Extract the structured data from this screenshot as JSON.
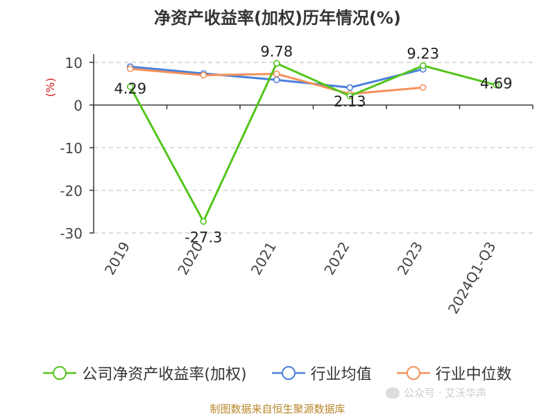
{
  "title": "净资产收益率(加权)历年情况(%)",
  "source": "制图数据来自恒生聚源数据库",
  "watermark": "公众号 · 艾沃华声",
  "chart_data": {
    "type": "line",
    "title": "净资产收益率(加权)历年情况(%)",
    "ylabel": "(%)",
    "ylim": [
      -30,
      10
    ],
    "yticks": [
      10,
      0,
      -10,
      -20,
      -30
    ],
    "grid": true,
    "legend": "bottom",
    "categories": [
      "2019",
      "2020",
      "2021",
      "2022",
      "2023",
      "2024Q1-Q3"
    ],
    "series": [
      {
        "name": "公司净资产收益率(加权)",
        "color": "#52c41a",
        "values": [
          4.29,
          -27.3,
          9.78,
          2.13,
          9.23,
          4.69
        ],
        "labels": [
          "4.29",
          "-27.3",
          "9.78",
          "2.13",
          "9.23",
          "4.69"
        ]
      },
      {
        "name": "行业均值",
        "color": "#4a7fdc",
        "values": [
          9.0,
          7.4,
          5.9,
          4.1,
          8.4,
          null
        ]
      },
      {
        "name": "行业中位数",
        "color": "#f5905a",
        "values": [
          8.5,
          7.0,
          7.3,
          2.6,
          4.1,
          null
        ]
      }
    ]
  }
}
